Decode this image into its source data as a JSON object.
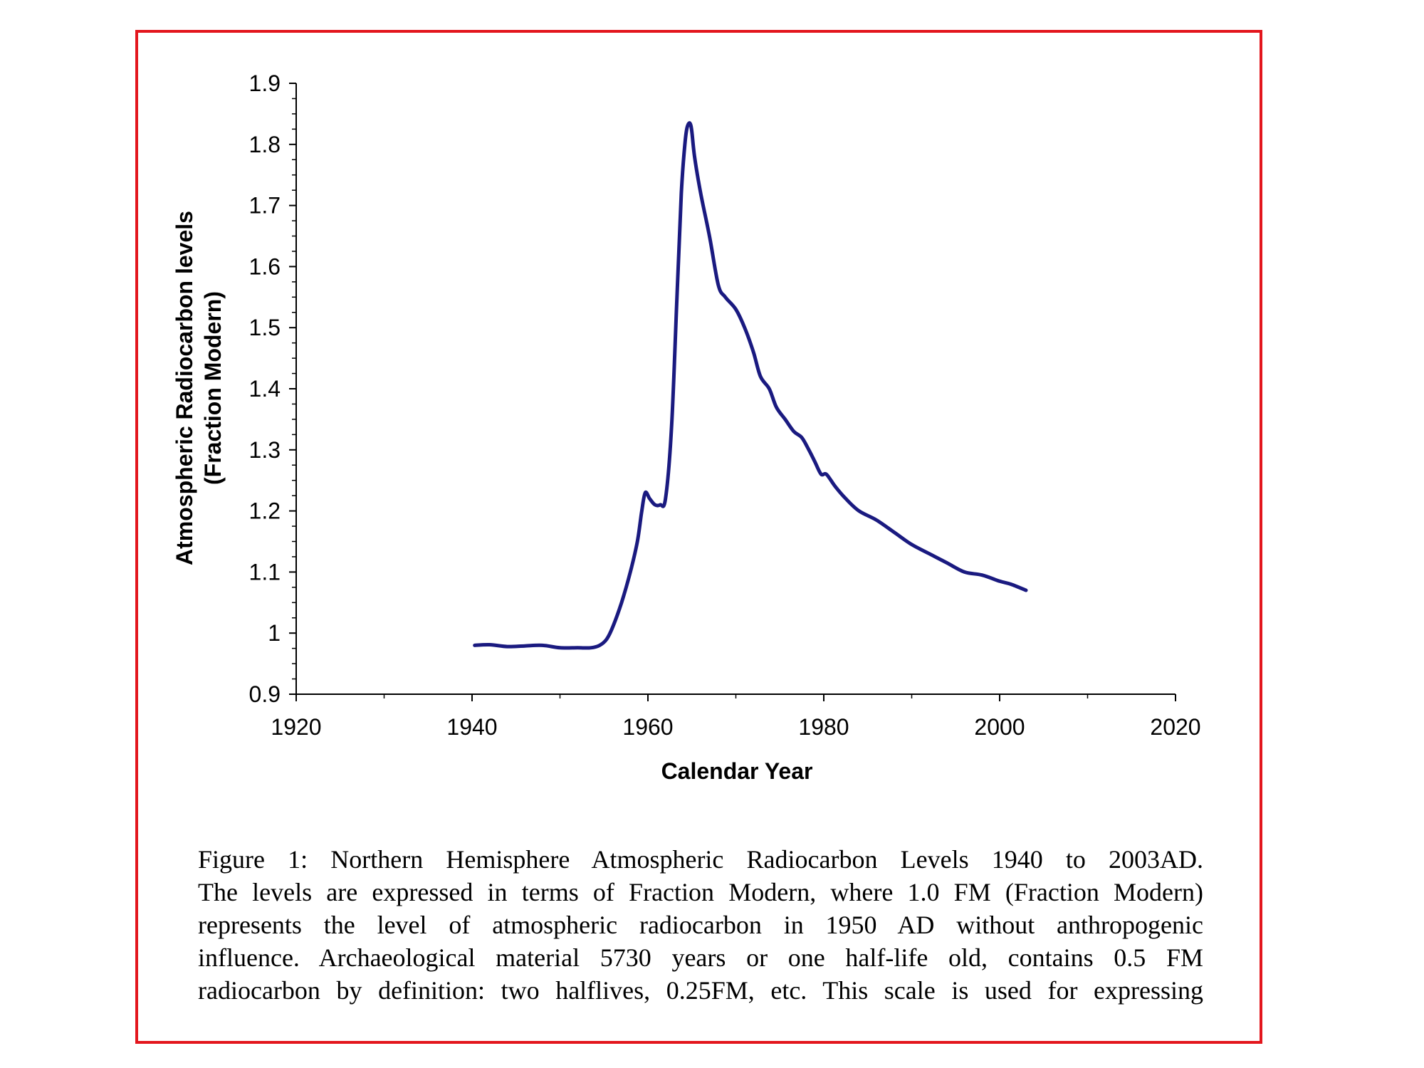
{
  "chart_data": {
    "type": "line",
    "xlabel": "Calendar Year",
    "ylabel_line1": "Atmospheric Radiocarbon levels",
    "ylabel_line2": "(Fraction Modern)",
    "xlim": [
      1920,
      2020
    ],
    "ylim": [
      0.9,
      1.9
    ],
    "x_ticks": [
      1920,
      1940,
      1960,
      1980,
      2000,
      2020
    ],
    "x_tick_labels": [
      "1920",
      "1940",
      "1960",
      "1980",
      "2000",
      "2020"
    ],
    "y_ticks": [
      0.9,
      1.0,
      1.1,
      1.2,
      1.3,
      1.4,
      1.5,
      1.6,
      1.7,
      1.8,
      1.9
    ],
    "y_tick_labels": [
      "0.9",
      "1",
      "1.1",
      "1.2",
      "1.3",
      "1.4",
      "1.5",
      "1.6",
      "1.7",
      "1.8",
      "1.9"
    ],
    "grid": false,
    "line_color": "#1a1a80",
    "series": [
      {
        "x": [
          1940.3,
          1942,
          1944,
          1946,
          1948,
          1950,
          1952,
          1953.5,
          1954.5,
          1955.3,
          1956,
          1957,
          1958,
          1958.8,
          1959.3,
          1959.7,
          1960.2,
          1960.8,
          1961.4,
          1962,
          1962.7,
          1963.3,
          1963.8,
          1964.2,
          1964.5,
          1964.9,
          1965.3,
          1966,
          1967,
          1968,
          1968.8,
          1970,
          1971,
          1972,
          1972.8,
          1973.8,
          1974.6,
          1975.6,
          1976.6,
          1977.5,
          1978.3,
          1979,
          1979.7,
          1980.3,
          1981.3,
          1982.5,
          1984,
          1986,
          1988,
          1990,
          1992,
          1994,
          1996,
          1998,
          2000,
          2001.3,
          2003
        ],
        "y": [
          0.98,
          0.981,
          0.978,
          0.979,
          0.98,
          0.976,
          0.976,
          0.976,
          0.98,
          0.99,
          1.01,
          1.05,
          1.1,
          1.15,
          1.2,
          1.23,
          1.22,
          1.21,
          1.21,
          1.22,
          1.34,
          1.55,
          1.72,
          1.8,
          1.83,
          1.83,
          1.78,
          1.72,
          1.65,
          1.57,
          1.55,
          1.53,
          1.5,
          1.46,
          1.42,
          1.4,
          1.37,
          1.35,
          1.33,
          1.32,
          1.3,
          1.28,
          1.26,
          1.26,
          1.24,
          1.22,
          1.2,
          1.185,
          1.165,
          1.145,
          1.13,
          1.115,
          1.1,
          1.095,
          1.085,
          1.08,
          1.07
        ]
      }
    ]
  },
  "caption": {
    "line1": "Figure 1:  Northern Hemisphere Atmospheric Radiocarbon Levels 1940 to 2003AD.",
    "line2": "The levels are expressed in terms of Fraction Modern, where 1.0 FM (Fraction Modern)",
    "line3": "represents the level of atmospheric radiocarbon in 1950 AD without anthropogenic",
    "line4": "influence. Archaeological material 5730 years or one half-life old, contains 0.5 FM",
    "line5": "radiocarbon by definition: two halflives, 0.25FM, etc. This scale is used for expressing"
  }
}
